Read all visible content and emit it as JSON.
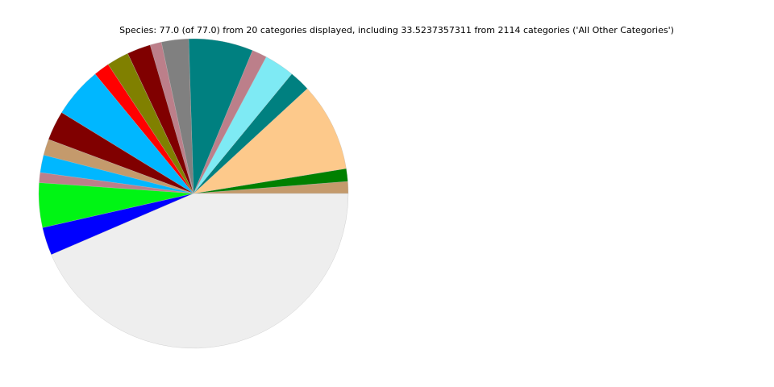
{
  "chart_data": {
    "type": "pie",
    "title": "Species: 77.0 (of 77.0) from 20 categories displayed, including 33.5237357311 from 2114 categories ('All Other Categories')",
    "values": [
      0.96,
      1.03,
      7.14,
      1.69,
      2.44,
      1.2,
      5.18,
      2.18,
      0.92,
      1.9,
      1.78,
      1.28,
      4.06,
      2.37,
      1.3,
      1.41,
      0.81,
      3.59,
      2.25,
      33.5237357311
    ],
    "colors": [
      "#c49a6c",
      "#008000",
      "#fdc98b",
      "#008080",
      "#7eeaf4",
      "#bc7f8a",
      "#008080",
      "#808080",
      "#bc7f8a",
      "#800000",
      "#808000",
      "#ff0000",
      "#00b7ff",
      "#800000",
      "#c49a6c",
      "#00b7ff",
      "#bc7f8a",
      "#00f514",
      "#0000ff",
      "#eeeeee"
    ]
  }
}
